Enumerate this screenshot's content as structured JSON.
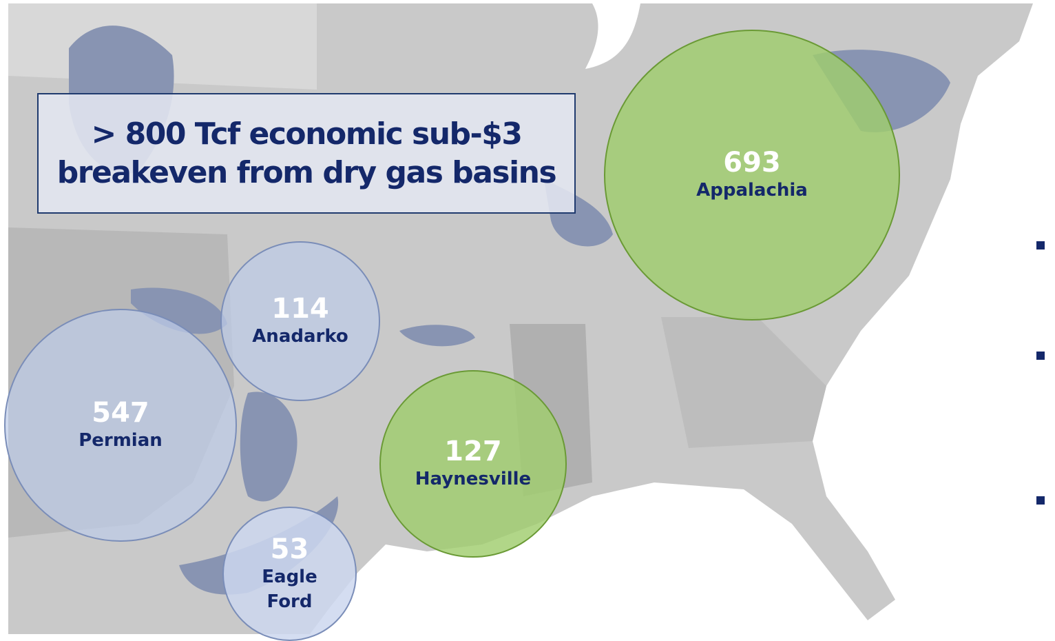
{
  "title": "> 800 Tcf economic sub-$3 breakeven from dry gas basins",
  "basins": [
    {
      "value": 693,
      "name": "Appalachia"
    },
    {
      "value": 114,
      "name": "Anadarko"
    },
    {
      "value": 547,
      "name": "Permian"
    },
    {
      "value": 127,
      "name": "Haynesville"
    },
    {
      "value": 53,
      "name": "Eagle Ford"
    }
  ]
}
